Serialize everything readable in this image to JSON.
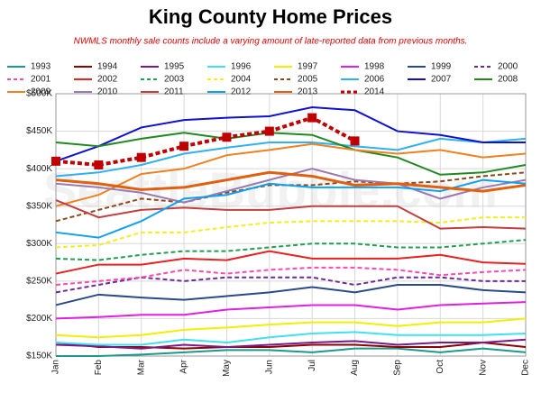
{
  "chart_data": {
    "type": "line",
    "title": "King County Home Prices",
    "subtitle": "NWMLS monthly sale counts include a varying amount of late-reported  data from previous months.",
    "watermark": "SeattleBubble.com",
    "categories": [
      "Jan",
      "Feb",
      "Mar",
      "Apr",
      "May",
      "Jun",
      "Jul",
      "Aug",
      "Sep",
      "Oct",
      "Nov",
      "Dec"
    ],
    "ylim": [
      150000,
      500000
    ],
    "yticks": [
      {
        "value": 150000,
        "label": "$150K"
      },
      {
        "value": 200000,
        "label": "$200K"
      },
      {
        "value": 250000,
        "label": "$250K"
      },
      {
        "value": 300000,
        "label": "$300K"
      },
      {
        "value": 350000,
        "label": "$350K"
      },
      {
        "value": 400000,
        "label": "$400K"
      },
      {
        "value": 450000,
        "label": "$450K"
      },
      {
        "value": 500000,
        "label": "$500K"
      }
    ],
    "grid": true,
    "series": [
      {
        "name": "1993",
        "color": "#1a9a8a",
        "values": [
          150000,
          150000,
          152000,
          155000,
          158000,
          158000,
          155000,
          160000,
          160000,
          155000,
          160000,
          155000
        ]
      },
      {
        "name": "1994",
        "color": "#8b0000",
        "values": [
          168000,
          162000,
          162000,
          160000,
          162000,
          162000,
          165000,
          165000,
          162000,
          162000,
          168000,
          162000
        ]
      },
      {
        "name": "1995",
        "color": "#7a1a8a",
        "values": [
          165000,
          163000,
          160000,
          165000,
          162000,
          165000,
          168000,
          170000,
          165000,
          168000,
          168000,
          172000
        ]
      },
      {
        "name": "1996",
        "color": "#40e0f0",
        "values": [
          168000,
          165000,
          165000,
          172000,
          168000,
          175000,
          180000,
          182000,
          178000,
          178000,
          178000,
          180000
        ]
      },
      {
        "name": "1997",
        "color": "#f0f000",
        "values": [
          178000,
          175000,
          178000,
          185000,
          188000,
          192000,
          195000,
          195000,
          190000,
          195000,
          195000,
          200000
        ]
      },
      {
        "name": "1998",
        "color": "#e020e0",
        "values": [
          200000,
          202000,
          205000,
          205000,
          212000,
          215000,
          218000,
          218000,
          212000,
          218000,
          220000,
          222000
        ]
      },
      {
        "name": "1999",
        "color": "#2a4a8a",
        "values": [
          218000,
          232000,
          228000,
          225000,
          230000,
          235000,
          242000,
          235000,
          245000,
          245000,
          238000,
          235000
        ]
      },
      {
        "name": "2000",
        "color": "#6a2a9a",
        "dashed": true,
        "values": [
          235000,
          245000,
          255000,
          250000,
          255000,
          255000,
          255000,
          245000,
          255000,
          255000,
          250000,
          250000
        ]
      },
      {
        "name": "2001",
        "color": "#ff4ab0",
        "dashed": true,
        "values": [
          245000,
          250000,
          255000,
          265000,
          260000,
          265000,
          268000,
          268000,
          265000,
          258000,
          262000,
          265000
        ]
      },
      {
        "name": "2002",
        "color": "#e82020",
        "values": [
          260000,
          272000,
          272000,
          280000,
          278000,
          290000,
          280000,
          280000,
          280000,
          285000,
          275000,
          273000
        ]
      },
      {
        "name": "2003",
        "color": "#20a050",
        "dashed": true,
        "values": [
          280000,
          278000,
          285000,
          290000,
          290000,
          295000,
          300000,
          300000,
          295000,
          295000,
          300000,
          305000
        ]
      },
      {
        "name": "2004",
        "color": "#f0f020",
        "dashed": true,
        "values": [
          295000,
          298000,
          315000,
          315000,
          322000,
          328000,
          330000,
          330000,
          330000,
          328000,
          335000,
          335000
        ]
      },
      {
        "name": "2005",
        "color": "#8a4a1a",
        "dashed": true,
        "values": [
          330000,
          345000,
          360000,
          355000,
          368000,
          378000,
          378000,
          383000,
          380000,
          383000,
          390000,
          395000
        ]
      },
      {
        "name": "2006",
        "color": "#30b0f0",
        "values": [
          390000,
          395000,
          405000,
          420000,
          428000,
          435000,
          435000,
          430000,
          425000,
          440000,
          435000,
          440000
        ]
      },
      {
        "name": "2007",
        "color": "#1010d0",
        "values": [
          410000,
          430000,
          455000,
          465000,
          468000,
          470000,
          482000,
          478000,
          450000,
          445000,
          435000,
          435000
        ]
      },
      {
        "name": "2008",
        "color": "#208a20",
        "values": [
          435000,
          430000,
          440000,
          448000,
          440000,
          448000,
          445000,
          425000,
          415000,
          392000,
          395000,
          405000
        ]
      },
      {
        "name": "2009",
        "color": "#f08020",
        "values": [
          350000,
          365000,
          393000,
          400000,
          418000,
          425000,
          433000,
          425000,
          420000,
          425000,
          415000,
          420000
        ]
      },
      {
        "name": "2010",
        "color": "#9a7ab0",
        "values": [
          380000,
          375000,
          368000,
          355000,
          370000,
          385000,
          400000,
          385000,
          380000,
          360000,
          375000,
          385000
        ]
      },
      {
        "name": "2011",
        "color": "#c04040",
        "values": [
          358000,
          335000,
          345000,
          348000,
          345000,
          345000,
          350000,
          350000,
          350000,
          320000,
          322000,
          320000
        ]
      },
      {
        "name": "2012",
        "color": "#10a0f0",
        "values": [
          315000,
          308000,
          330000,
          360000,
          365000,
          380000,
          375000,
          375000,
          375000,
          370000,
          385000,
          380000
        ]
      },
      {
        "name": "2013",
        "color": "#e06010",
        "values": [
          385000,
          380000,
          372000,
          375000,
          385000,
          395000,
          390000,
          378000,
          380000,
          375000,
          370000,
          378000
        ]
      },
      {
        "name": "2014",
        "color": "#c00000",
        "dashed": true,
        "markers": true,
        "values": [
          410000,
          405000,
          415000,
          430000,
          442000,
          450000,
          468000,
          437000,
          null,
          null,
          null,
          null
        ]
      }
    ]
  }
}
